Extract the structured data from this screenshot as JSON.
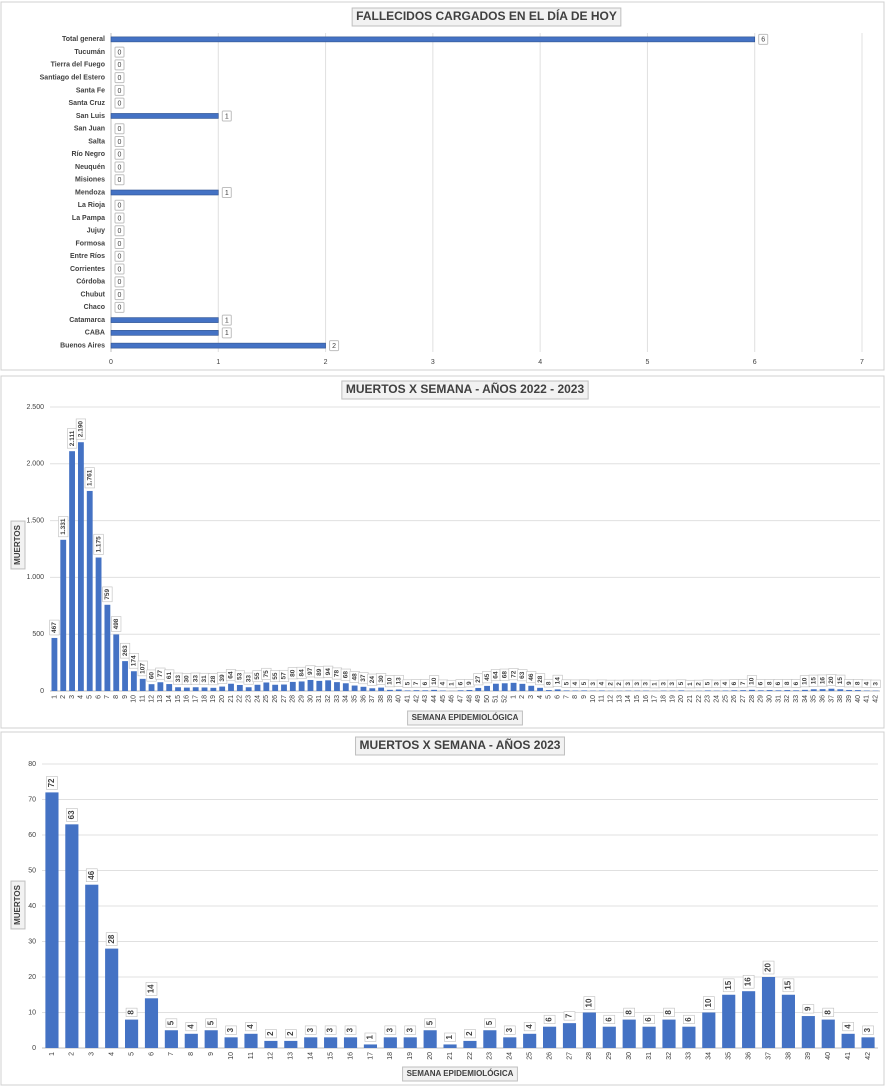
{
  "chart_data": [
    {
      "type": "hbar",
      "title": "FALLECIDOS CARGADOS EN EL DÍA DE HOY",
      "categories": [
        "Total general",
        "Tucumán",
        "Tierra del Fuego",
        "Santiago del Estero",
        "Santa Fe",
        "Santa Cruz",
        "San Luis",
        "San Juan",
        "Salta",
        "Río Negro",
        "Neuquén",
        "Misiones",
        "Mendoza",
        "La Rioja",
        "La Pampa",
        "Jujuy",
        "Formosa",
        "Entre Ríos",
        "Corrientes",
        "Córdoba",
        "Chubut",
        "Chaco",
        "Catamarca",
        "CABA",
        "Buenos Aires"
      ],
      "values": [
        6,
        0,
        0,
        0,
        0,
        0,
        1,
        0,
        0,
        0,
        0,
        0,
        1,
        0,
        0,
        0,
        0,
        0,
        0,
        0,
        0,
        0,
        1,
        1,
        2
      ],
      "color": "#4472c4",
      "xlim": [
        0,
        7
      ],
      "xticks": [
        0,
        1,
        2,
        3,
        4,
        5,
        6,
        7
      ],
      "grid": true
    },
    {
      "type": "bar",
      "title": "MUERTOS X SEMANA - AÑOS 2022 - 2023",
      "x_label": "SEMANA EPIDEMIOLÓGICA",
      "y_label": "MUERTOS",
      "categories": [
        "1",
        "2",
        "3",
        "4",
        "5",
        "6",
        "7",
        "8",
        "9",
        "10",
        "11",
        "12",
        "13",
        "14",
        "15",
        "16",
        "17",
        "18",
        "19",
        "20",
        "21",
        "22",
        "23",
        "24",
        "25",
        "26",
        "27",
        "28",
        "29",
        "30",
        "31",
        "32",
        "33",
        "34",
        "35",
        "36",
        "37",
        "38",
        "39",
        "40",
        "41",
        "42",
        "43",
        "44",
        "45",
        "46",
        "47",
        "48",
        "49",
        "50",
        "51",
        "52",
        "1",
        "2",
        "3",
        "4",
        "5",
        "6",
        "7",
        "8",
        "9",
        "10",
        "11",
        "12",
        "13",
        "14",
        "15",
        "16",
        "17",
        "18",
        "19",
        "20",
        "21",
        "22",
        "23",
        "24",
        "25",
        "26",
        "27",
        "28",
        "29",
        "30",
        "31",
        "32",
        "33",
        "34",
        "35",
        "36",
        "37",
        "38",
        "39",
        "40",
        "41",
        "42"
      ],
      "values": [
        467,
        1331,
        2111,
        2190,
        1761,
        1175,
        759,
        498,
        263,
        174,
        107,
        60,
        77,
        61,
        33,
        30,
        33,
        31,
        28,
        39,
        64,
        53,
        33,
        55,
        75,
        55,
        57,
        80,
        84,
        97,
        89,
        94,
        78,
        68,
        48,
        37,
        24,
        30,
        10,
        13,
        5,
        7,
        6,
        10,
        4,
        1,
        6,
        9,
        27,
        45,
        64,
        68,
        72,
        63,
        46,
        28,
        8,
        14,
        5,
        4,
        5,
        3,
        4,
        2,
        2,
        3,
        3,
        3,
        1,
        3,
        3,
        5,
        1,
        2,
        5,
        3,
        4,
        6,
        7,
        10,
        6,
        8,
        6,
        8,
        6,
        10,
        15,
        16,
        20,
        15,
        9,
        8,
        4,
        3
      ],
      "value_labels": [
        "467",
        "1.331",
        "2.111",
        "2.190",
        "1.761",
        "1.175",
        "759",
        "498",
        "263",
        "174",
        "107",
        "60",
        "77",
        "61",
        "33",
        "30",
        "33",
        "31",
        "28",
        "39",
        "64",
        "53",
        "33",
        "55",
        "75",
        "55",
        "57",
        "80",
        "84",
        "97",
        "89",
        "94",
        "78",
        "68",
        "48",
        "37",
        "24",
        "30",
        "10",
        "13",
        "5",
        "7",
        "6",
        "10",
        "4",
        "1",
        "6",
        "9",
        "27",
        "45",
        "64",
        "68",
        "72",
        "63",
        "46",
        "28",
        "8",
        "14",
        "5",
        "4",
        "5",
        "3",
        "4",
        "2",
        "2",
        "3",
        "3",
        "3",
        "1",
        "3",
        "3",
        "5",
        "1",
        "2",
        "5",
        "3",
        "4",
        "6",
        "7",
        "10",
        "6",
        "8",
        "6",
        "8",
        "6",
        "10",
        "15",
        "16",
        "20",
        "15",
        "9",
        "8",
        "4",
        "3"
      ],
      "color": "#4472c4",
      "ylim": [
        0,
        2500
      ],
      "yticks": [
        0,
        500,
        {
          "value": 1000,
          "label": "1.000"
        },
        {
          "value": 1500,
          "label": "1.500"
        },
        {
          "value": 2000,
          "label": "2.000"
        },
        {
          "value": 2500,
          "label": "2.500"
        }
      ],
      "grid": true
    },
    {
      "type": "bar",
      "title": "MUERTOS X SEMANA - AÑOS 2023",
      "x_label": "SEMANA EPIDEMIOLÓGICA",
      "y_label": "MUERTOS",
      "categories": [
        "1",
        "2",
        "3",
        "4",
        "5",
        "6",
        "7",
        "8",
        "9",
        "10",
        "11",
        "12",
        "13",
        "14",
        "15",
        "16",
        "17",
        "18",
        "19",
        "20",
        "21",
        "22",
        "23",
        "24",
        "25",
        "26",
        "27",
        "28",
        "29",
        "30",
        "31",
        "32",
        "33",
        "34",
        "35",
        "36",
        "37",
        "38",
        "39",
        "40",
        "41",
        "42"
      ],
      "values": [
        72,
        63,
        46,
        28,
        8,
        14,
        5,
        4,
        5,
        3,
        4,
        2,
        2,
        3,
        3,
        3,
        1,
        3,
        3,
        5,
        1,
        2,
        5,
        3,
        4,
        6,
        7,
        10,
        6,
        8,
        6,
        8,
        6,
        10,
        15,
        16,
        20,
        15,
        9,
        8,
        4,
        3
      ],
      "color": "#4472c4",
      "ylim": [
        0,
        80
      ],
      "yticks": [
        0,
        10,
        20,
        30,
        40,
        50,
        60,
        70,
        80
      ],
      "grid": true
    }
  ]
}
